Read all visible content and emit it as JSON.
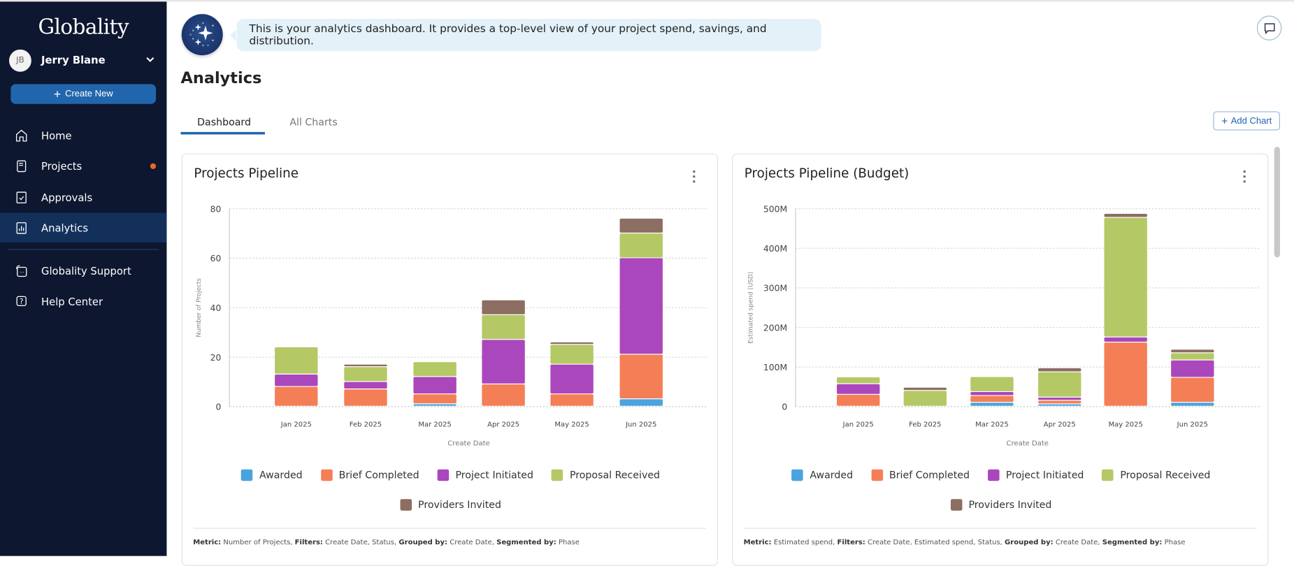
{
  "sidebar": {
    "logo": "Globality",
    "user": {
      "initials": "JB",
      "name": "Jerry Blane"
    },
    "create_label": "Create New",
    "items": [
      {
        "label": "Home",
        "icon": "home-icon"
      },
      {
        "label": "Projects",
        "icon": "projects-icon",
        "badge": true
      },
      {
        "label": "Approvals",
        "icon": "approvals-icon"
      },
      {
        "label": "Analytics",
        "icon": "analytics-icon",
        "active": true
      },
      {
        "label": "Globality Support",
        "icon": "support-icon"
      },
      {
        "label": "Help Center",
        "icon": "help-icon"
      }
    ]
  },
  "assistant": {
    "message": "This is your analytics dashboard. It provides a top-level view of your project spend, savings, and distribution."
  },
  "header": {
    "title": "Analytics",
    "add_chart": "Add Chart"
  },
  "tabs": [
    {
      "label": "Dashboard",
      "active": true
    },
    {
      "label": "All Charts"
    }
  ],
  "colors": {
    "Awarded": "#4aa3df",
    "Brief Completed": "#f47f56",
    "Project Initiated": "#ab47bc",
    "Proposal Received": "#b5c866",
    "Providers Invited": "#8c6e62",
    "accent": "#2166ad",
    "sidebar": "#0d1730"
  },
  "cards": [
    {
      "title": "Projects Pipeline",
      "footer": [
        {
          "k": "Metric:",
          "v": " Number of Projects, "
        },
        {
          "k": "Filters:",
          "v": " Create Date, Status, "
        },
        {
          "k": "Grouped by:",
          "v": " Create Date, "
        },
        {
          "k": "Segmented by:",
          "v": " Phase"
        }
      ]
    },
    {
      "title": "Projects Pipeline (Budget)",
      "footer": [
        {
          "k": "Metric:",
          "v": " Estimated spend, "
        },
        {
          "k": "Filters:",
          "v": " Create Date, Estimated spend, Status, "
        },
        {
          "k": "Grouped by:",
          "v": " Create Date, "
        },
        {
          "k": "Segmented by:",
          "v": " Phase"
        }
      ]
    }
  ],
  "chart_data": [
    {
      "type": "bar",
      "stacked": true,
      "title": "Projects Pipeline",
      "xlabel": "Create Date",
      "ylabel": "Number of Projects",
      "ylim": [
        0,
        80
      ],
      "yticks": [
        "0",
        "20",
        "40",
        "60",
        "80"
      ],
      "yticks_values": [
        0,
        20,
        40,
        60,
        80
      ],
      "grid": true,
      "legend": "bottom",
      "categories": [
        "Jan 2025",
        "Feb 2025",
        "Mar 2025",
        "Apr 2025",
        "May 2025",
        "Jun 2025"
      ],
      "series": [
        {
          "name": "Awarded",
          "values": [
            0,
            0,
            1,
            0,
            0,
            3
          ]
        },
        {
          "name": "Brief Completed",
          "values": [
            8,
            7,
            4,
            9,
            5,
            18
          ]
        },
        {
          "name": "Project Initiated",
          "values": [
            5,
            3,
            7,
            18,
            12,
            39
          ]
        },
        {
          "name": "Proposal Received",
          "values": [
            11,
            6,
            6,
            10,
            8,
            10
          ]
        },
        {
          "name": "Providers Invited",
          "values": [
            0,
            1,
            0,
            6,
            1,
            6
          ]
        }
      ]
    },
    {
      "type": "bar",
      "stacked": true,
      "title": "Projects Pipeline (Budget)",
      "xlabel": "Create Date",
      "ylabel": "Estimated spend (USD)",
      "ylim": [
        0,
        500000000
      ],
      "yticks": [
        "0",
        "100M",
        "200M",
        "300M",
        "400M",
        "500M"
      ],
      "yticks_values": [
        0,
        100000000,
        200000000,
        300000000,
        400000000,
        500000000
      ],
      "grid": true,
      "legend": "bottom",
      "categories": [
        "Jan 2025",
        "Feb 2025",
        "Mar 2025",
        "Apr 2025",
        "May 2025",
        "Jun 2025"
      ],
      "series": [
        {
          "name": "Awarded",
          "values": [
            0,
            0,
            10000000,
            6000000,
            0,
            10000000
          ]
        },
        {
          "name": "Brief Completed",
          "values": [
            30000000,
            0,
            17000000,
            9000000,
            162000000,
            63000000
          ]
        },
        {
          "name": "Project Initiated",
          "values": [
            27000000,
            0,
            10000000,
            8000000,
            13000000,
            44000000
          ]
        },
        {
          "name": "Proposal Received",
          "values": [
            17000000,
            40000000,
            38000000,
            64000000,
            302000000,
            18000000
          ]
        },
        {
          "name": "Providers Invited",
          "values": [
            0,
            8000000,
            0,
            10000000,
            10000000,
            9000000
          ]
        }
      ]
    }
  ]
}
